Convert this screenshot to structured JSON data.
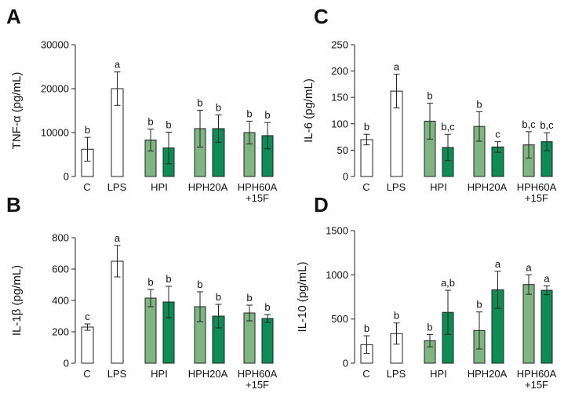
{
  "colors": {
    "control": "#ffffff",
    "light_green": "#7fb583",
    "dark_green": "#0e8c55",
    "stroke": "#222222"
  },
  "chart_data": [
    {
      "panel": "A",
      "type": "bar",
      "ylabel": "TNF-α (pg/mL)",
      "ylim": [
        0,
        30000
      ],
      "yticks": [
        0,
        10000,
        20000,
        30000
      ],
      "ytick_labels": [
        "0",
        "10000",
        "20000",
        "30000"
      ],
      "categories": [
        "C",
        "LPS",
        "HPI",
        "HPH20A",
        "HPH60A +15F"
      ],
      "category_lines": [
        [
          "C"
        ],
        [
          "LPS"
        ],
        [
          "HPI"
        ],
        [
          "HPH20A"
        ],
        [
          "HPH60A",
          "+15F"
        ]
      ],
      "bars": [
        {
          "category": "C",
          "fill": "control",
          "value": 6200,
          "err": 2700,
          "sig": "b"
        },
        {
          "category": "LPS",
          "fill": "control",
          "value": 20000,
          "err": 3800,
          "sig": "a"
        },
        {
          "category": "HPI",
          "fill": "light_green",
          "value": 8300,
          "err": 2500,
          "sig": "b"
        },
        {
          "category": "HPI",
          "fill": "dark_green",
          "value": 6500,
          "err": 3600,
          "sig": "b"
        },
        {
          "category": "HPH20A",
          "fill": "light_green",
          "value": 10900,
          "err": 4200,
          "sig": "b"
        },
        {
          "category": "HPH20A",
          "fill": "dark_green",
          "value": 10900,
          "err": 3100,
          "sig": "b"
        },
        {
          "category": "HPH60A +15F",
          "fill": "light_green",
          "value": 10000,
          "err": 2600,
          "sig": "b"
        },
        {
          "category": "HPH60A +15F",
          "fill": "dark_green",
          "value": 9300,
          "err": 3000,
          "sig": "b"
        }
      ]
    },
    {
      "panel": "B",
      "type": "bar",
      "ylabel": "IL-1β (pg/mL)",
      "ylim": [
        0,
        800
      ],
      "yticks": [
        0,
        200,
        400,
        600,
        800
      ],
      "ytick_labels": [
        "0",
        "200",
        "400",
        "600",
        "800"
      ],
      "categories": [
        "C",
        "LPS",
        "HPI",
        "HPH20A",
        "HPH60A +15F"
      ],
      "category_lines": [
        [
          "C"
        ],
        [
          "LPS"
        ],
        [
          "HPI"
        ],
        [
          "HPH20A"
        ],
        [
          "HPH60A",
          "+15F"
        ]
      ],
      "bars": [
        {
          "category": "C",
          "fill": "control",
          "value": 230,
          "err": 20,
          "sig": "c"
        },
        {
          "category": "LPS",
          "fill": "control",
          "value": 650,
          "err": 100,
          "sig": "a"
        },
        {
          "category": "HPI",
          "fill": "light_green",
          "value": 415,
          "err": 55,
          "sig": "b"
        },
        {
          "category": "HPI",
          "fill": "dark_green",
          "value": 390,
          "err": 100,
          "sig": "b"
        },
        {
          "category": "HPH20A",
          "fill": "light_green",
          "value": 360,
          "err": 95,
          "sig": "b"
        },
        {
          "category": "HPH20A",
          "fill": "dark_green",
          "value": 300,
          "err": 75,
          "sig": "b"
        },
        {
          "category": "HPH60A +15F",
          "fill": "light_green",
          "value": 320,
          "err": 50,
          "sig": "b"
        },
        {
          "category": "HPH60A +15F",
          "fill": "dark_green",
          "value": 285,
          "err": 25,
          "sig": "b"
        }
      ]
    },
    {
      "panel": "C",
      "type": "bar",
      "ylabel": "IL-6 (pg/mL)",
      "ylim": [
        0,
        250
      ],
      "yticks": [
        0,
        50,
        100,
        150,
        200,
        250
      ],
      "ytick_labels": [
        "0",
        "50",
        "100",
        "150",
        "200",
        "250"
      ],
      "categories": [
        "C",
        "LPS",
        "HPI",
        "HPH20A",
        "HPH60A +15F"
      ],
      "category_lines": [
        [
          "C"
        ],
        [
          "LPS"
        ],
        [
          "HPI"
        ],
        [
          "HPH20A"
        ],
        [
          "HPH60A",
          "+15F"
        ]
      ],
      "bars": [
        {
          "category": "C",
          "fill": "control",
          "value": 70,
          "err": 10,
          "sig": "b"
        },
        {
          "category": "LPS",
          "fill": "control",
          "value": 162,
          "err": 32,
          "sig": "a"
        },
        {
          "category": "HPI",
          "fill": "light_green",
          "value": 105,
          "err": 34,
          "sig": "b"
        },
        {
          "category": "HPI",
          "fill": "dark_green",
          "value": 55,
          "err": 25,
          "sig": "b,c"
        },
        {
          "category": "HPH20A",
          "fill": "light_green",
          "value": 95,
          "err": 28,
          "sig": "b"
        },
        {
          "category": "HPH20A",
          "fill": "dark_green",
          "value": 56,
          "err": 10,
          "sig": "c"
        },
        {
          "category": "HPH60A +15F",
          "fill": "light_green",
          "value": 60,
          "err": 25,
          "sig": "b,c"
        },
        {
          "category": "HPH60A +15F",
          "fill": "dark_green",
          "value": 66,
          "err": 17,
          "sig": "b,c"
        }
      ]
    },
    {
      "panel": "D",
      "type": "bar",
      "ylabel": "IL-10 (pg/mL)",
      "ylim": [
        0,
        1500
      ],
      "yticks": [
        0,
        500,
        1000,
        1500
      ],
      "ytick_labels": [
        "0",
        "500",
        "1000",
        "1500"
      ],
      "categories": [
        "C",
        "LPS",
        "HPI",
        "HPH20A",
        "HPH60A +15F"
      ],
      "category_lines": [
        [
          "C"
        ],
        [
          "LPS"
        ],
        [
          "HPI"
        ],
        [
          "HPH20A"
        ],
        [
          "HPH60A",
          "+15F"
        ]
      ],
      "bars": [
        {
          "category": "C",
          "fill": "control",
          "value": 210,
          "err": 100,
          "sig": "b"
        },
        {
          "category": "LPS",
          "fill": "control",
          "value": 335,
          "err": 120,
          "sig": "b"
        },
        {
          "category": "HPI",
          "fill": "light_green",
          "value": 255,
          "err": 70,
          "sig": "b"
        },
        {
          "category": "HPI",
          "fill": "dark_green",
          "value": 575,
          "err": 250,
          "sig": "a,b"
        },
        {
          "category": "HPH20A",
          "fill": "light_green",
          "value": 370,
          "err": 210,
          "sig": "b"
        },
        {
          "category": "HPH20A",
          "fill": "dark_green",
          "value": 830,
          "err": 210,
          "sig": "a"
        },
        {
          "category": "HPH60A +15F",
          "fill": "light_green",
          "value": 890,
          "err": 110,
          "sig": "a"
        },
        {
          "category": "HPH60A +15F",
          "fill": "dark_green",
          "value": 825,
          "err": 50,
          "sig": "a"
        }
      ]
    }
  ]
}
